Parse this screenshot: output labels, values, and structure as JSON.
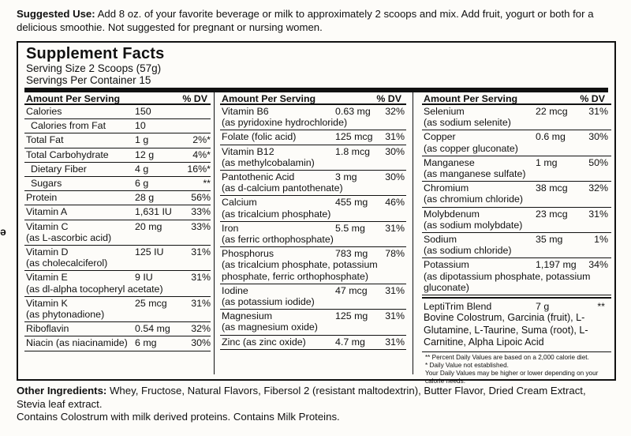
{
  "suggested_use": {
    "label": "Suggested Use:",
    "text": "Add 8 oz. of your favorite beverage or milk to approximately 2 scoops and mix. Add fruit, yogurt or both for a delicious smoothie. Not suggested for pregnant or nursing women."
  },
  "facts": {
    "title": "Supplement Facts",
    "serving_size": "Serving Size 2 Scoops (57g)",
    "servings_per_container": "Servings Per Container 15",
    "header_left": "Amount Per Serving",
    "header_dv": "% DV",
    "col1": [
      {
        "name": "Calories",
        "amount": "150",
        "dv": ""
      },
      {
        "name": "Calories from Fat",
        "amount": "10",
        "dv": "",
        "indent": true
      },
      {
        "name": "Total Fat",
        "amount": "1 g",
        "dv": "2%*"
      },
      {
        "name": "Total Carbohydrate",
        "amount": "12 g",
        "dv": "4%*"
      },
      {
        "name": "Dietary Fiber",
        "amount": "4 g",
        "dv": "16%*",
        "indent": true
      },
      {
        "name": "Sugars",
        "amount": "6 g",
        "dv": "**",
        "indent": true
      },
      {
        "name": "Protein",
        "amount": "28 g",
        "dv": "56%"
      },
      {
        "name": "Vitamin A",
        "amount": "1,631 IU",
        "dv": "33%"
      },
      {
        "name": "Vitamin C",
        "sub": "(as L-ascorbic acid)",
        "amount": "20 mg",
        "dv": "33%"
      },
      {
        "name": "Vitamin D",
        "sub": "(as cholecalciferol)",
        "amount": "125 IU",
        "dv": "31%"
      },
      {
        "name": "Vitamin E",
        "sub": "(as dl-alpha tocopheryl acetate)",
        "amount": "9 IU",
        "dv": "31%"
      },
      {
        "name": "Vitamin K",
        "sub": "(as phytonadione)",
        "amount": "25 mcg",
        "dv": "31%"
      },
      {
        "name": "Riboflavin",
        "amount": "0.54 mg",
        "dv": "32%"
      },
      {
        "name": "Niacin (as niacinamide)",
        "amount": "6 mg",
        "dv": "30%"
      }
    ],
    "col2": [
      {
        "name": "Vitamin B6",
        "sub": "(as pyridoxine hydrochloride)",
        "amount": "0.63 mg",
        "dv": "32%"
      },
      {
        "name": "Folate (folic acid)",
        "amount": "125 mcg",
        "dv": "31%"
      },
      {
        "name": "Vitamin B12",
        "sub": "(as methylcobalamin)",
        "amount": "1.8 mcg",
        "dv": "30%"
      },
      {
        "name": "Pantothenic Acid",
        "sub": "(as d-calcium pantothenate)",
        "amount": "3 mg",
        "dv": "30%"
      },
      {
        "name": "Calcium",
        "sub": "(as tricalcium phosphate)",
        "amount": "455 mg",
        "dv": "46%"
      },
      {
        "name": "Iron",
        "sub": "(as ferric orthophosphate)",
        "amount": "5.5 mg",
        "dv": "31%"
      },
      {
        "name": "Phosphorus",
        "sub": "(as tricalcium phosphate, potassium phosphate, ferric orthophosphate)",
        "amount": "783 mg",
        "dv": "78%"
      },
      {
        "name": "Iodine",
        "sub": "(as potassium iodide)",
        "amount": "47 mcg",
        "dv": "31%"
      },
      {
        "name": "Magnesium",
        "sub": "(as magnesium oxide)",
        "amount": "125 mg",
        "dv": "31%"
      },
      {
        "name": "Zinc (as zinc oxide)",
        "amount": "4.7 mg",
        "dv": "31%"
      }
    ],
    "col3": [
      {
        "name": "Selenium",
        "sub": "(as sodium selenite)",
        "amount": "22 mcg",
        "dv": "31%"
      },
      {
        "name": "Copper",
        "sub": "(as copper gluconate)",
        "amount": "0.6 mg",
        "dv": "30%"
      },
      {
        "name": "Manganese",
        "sub": "(as manganese sulfate)",
        "amount": "1 mg",
        "dv": "50%"
      },
      {
        "name": "Chromium",
        "sub": "(as chromium chloride)",
        "amount": "38 mcg",
        "dv": "32%"
      },
      {
        "name": "Molybdenum",
        "sub": "(as sodium molybdate)",
        "amount": "23 mcg",
        "dv": "31%"
      },
      {
        "name": "Sodium",
        "sub": "(as sodium chloride)",
        "amount": "35 mg",
        "dv": "1%"
      },
      {
        "name": "Potassium",
        "sub": "(as dipotassium phosphate, potassium gluconate)",
        "amount": "1,197 mg",
        "dv": "34%"
      }
    ],
    "blend": {
      "name": "LeptiTrim Blend",
      "amount": "7 g",
      "dv": "**",
      "ingredients": "Bovine Colostrum, Garcinia (fruit), L-Glutamine, L-Taurine, Suma (root), L-Carnitine, Alpha Lipoic Acid"
    },
    "footnotes": [
      "** Percent Daily Values are based on a 2,000 calorie diet.",
      "* Daily Value not established.",
      "Your Daily Values may be higher or lower depending on your calorie needs."
    ]
  },
  "other_ingredients": {
    "label": "Other Ingredients:",
    "text": "Whey, Fructose, Natural Flavors, Fibersol 2 (resistant maltodextrin), Butter Flavor, Dried Cream Extract, Stevia leaf extract.",
    "contains": "Contains Colostrum with milk derived proteins. Contains Milk Proteins."
  },
  "edge_mark": "ə"
}
